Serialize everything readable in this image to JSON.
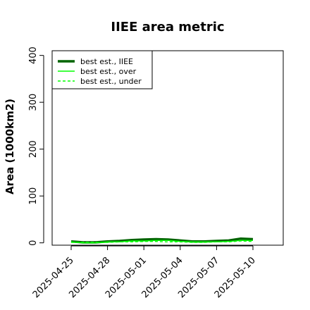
{
  "chart_data": {
    "type": "line",
    "title": "IIEE area metric",
    "xlabel": "",
    "ylabel": "Area (1000km2)",
    "ylim": [
      -5,
      410
    ],
    "y_ticks": [
      0,
      100,
      200,
      300,
      400
    ],
    "x_tick_labels": [
      "2025-04-25",
      "2025-04-28",
      "2025-05-01",
      "2025-05-04",
      "2025-05-07",
      "2025-05-10"
    ],
    "x": [
      "2025-04-25",
      "2025-04-26",
      "2025-04-27",
      "2025-04-28",
      "2025-04-29",
      "2025-04-30",
      "2025-05-01",
      "2025-05-02",
      "2025-05-03",
      "2025-05-04",
      "2025-05-05",
      "2025-05-06",
      "2025-05-07",
      "2025-05-08",
      "2025-05-09",
      "2025-05-10"
    ],
    "grid": false,
    "legend_position": "top-left",
    "series": [
      {
        "name": "best est., IIEE",
        "color": "#006400",
        "style": "solid-thick",
        "values": [
          3,
          1,
          1,
          3,
          4,
          6,
          7,
          8,
          7,
          5,
          3,
          3,
          4,
          5,
          9,
          8
        ]
      },
      {
        "name": "best est., over",
        "color": "#00ff00",
        "style": "solid",
        "values": [
          2,
          0,
          0,
          2,
          2,
          4,
          4,
          5,
          5,
          3,
          2,
          2,
          2,
          3,
          5,
          5
        ]
      },
      {
        "name": "best est., under",
        "color": "#00ff00",
        "style": "dashed",
        "values": [
          1,
          1,
          1,
          1,
          2,
          2,
          3,
          3,
          2,
          2,
          1,
          1,
          2,
          2,
          4,
          3
        ]
      }
    ]
  }
}
